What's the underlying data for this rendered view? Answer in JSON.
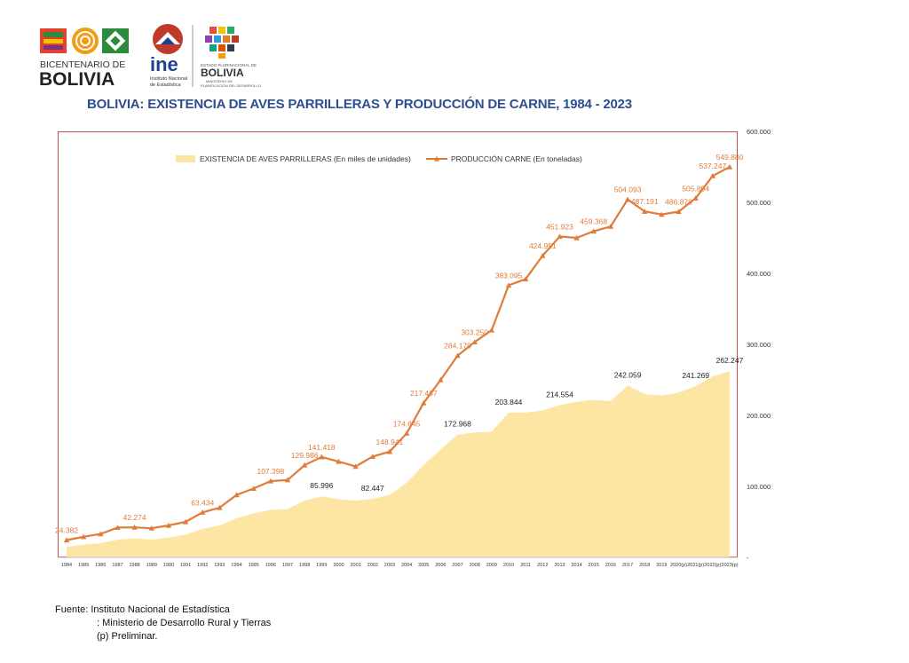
{
  "header": {
    "logo_bicentenario_line1": "BICENTENARIO DE",
    "logo_bicentenario_line2": "BOLIVIA",
    "logo_ine_text": "ine",
    "logo_ine_sub1": "Instituto Nacional",
    "logo_ine_sub2": "de Estadística",
    "logo_estado_top": "ESTADO PLURINACIONAL DE",
    "logo_estado_name": "BOLIVIA",
    "logo_estado_sub1": "MINISTERIO DE",
    "logo_estado_sub2": "PLANIFICACIÓN DEL DESARROLLO"
  },
  "chart_data": {
    "type": "line+area",
    "title": "BOLIVIA: EXISTENCIA DE AVES PARRILLERAS Y PRODUCCIÓN DE CARNE, 1984 - 2023",
    "categories": [
      "1984",
      "1985",
      "1986",
      "1987",
      "1988",
      "1989",
      "1990",
      "1991",
      "1992",
      "1993",
      "1994",
      "1995",
      "1996",
      "1997",
      "1998",
      "1999",
      "2000",
      "2001",
      "2002",
      "2003",
      "2004",
      "2005",
      "2006",
      "2007",
      "2008",
      "2009",
      "2010",
      "2011",
      "2012",
      "2013",
      "2014",
      "2015",
      "2016",
      "2017",
      "2018",
      "2019",
      "2020(p)",
      "2021(p)",
      "2022(p)",
      "2023(p)"
    ],
    "ylim": [
      0,
      600000
    ],
    "yticks": [
      "-",
      "100.000",
      "200.000",
      "300.000",
      "400.000",
      "500.000",
      "600.000"
    ],
    "legend_placement": "top-center",
    "series": [
      {
        "name": "EXISTENCIA DE AVES PARRILLERAS (En miles de unidades)",
        "kind": "area",
        "color": "#fde6a4",
        "values": [
          15000,
          18000,
          20000,
          25000,
          27000,
          25000,
          28000,
          32000,
          40000,
          45000,
          55000,
          62000,
          67000,
          68000,
          80000,
          85996,
          82000,
          80000,
          82447,
          88000,
          105000,
          130000,
          152000,
          172968,
          176000,
          177000,
          203844,
          204000,
          207000,
          214554,
          219000,
          222000,
          220000,
          242059,
          230000,
          228000,
          232000,
          241269,
          255000,
          262247
        ],
        "data_labels": {
          "1999": "85.996",
          "2002": "82.447",
          "2007": "172.968",
          "2010": "203.844",
          "2013": "214.554",
          "2017": "242.059",
          "2021(p)": "241.269",
          "2023(p)": "262.247"
        }
      },
      {
        "name": "PRODUCCIÓN CARNE (En toneladas)",
        "kind": "line",
        "color": "#e07b39",
        "values": [
          24382,
          29000,
          33000,
          42000,
          42274,
          41000,
          45000,
          50000,
          63434,
          70000,
          88000,
          97000,
          107398,
          109000,
          129986,
          141418,
          135000,
          128000,
          142000,
          148941,
          174645,
          217467,
          250000,
          284170,
          303250,
          320000,
          383095,
          392000,
          424951,
          451923,
          450000,
          459368,
          466000,
          504093,
          487191,
          483000,
          486878,
          505894,
          537247,
          549880
        ],
        "data_labels": {
          "1984": "24.382",
          "1988": "42.274",
          "1992": "63.434",
          "1996": "107.398",
          "1998": "129.986",
          "1999": "141.418",
          "2003": "148.941",
          "2004": "174.645",
          "2005": "217.467",
          "2007": "284.170",
          "2008": "303.250",
          "2010": "383.095",
          "2012": "424.951",
          "2013": "451.923",
          "2015": "459.368",
          "2017": "504.093",
          "2018": "487.191",
          "2020(p)": "486.878",
          "2021(p)": "505.894",
          "2022(p)": "537.247",
          "2023(p)": "549.880"
        }
      }
    ]
  },
  "source": {
    "line1": "Fuente: Instituto Nacional de Estadística",
    "line2": ":  Ministerio de Desarrollo Rural y Tierras",
    "line3": "(p) Preliminar."
  }
}
